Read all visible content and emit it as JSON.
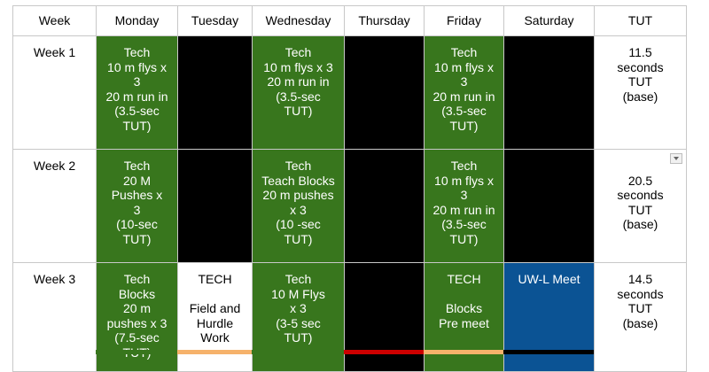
{
  "header": [
    "Week",
    "Monday",
    "Tuesday",
    "Wednesday",
    "Thursday",
    "Friday",
    "Saturday",
    "TUT"
  ],
  "rows": [
    {
      "week": "Week 1",
      "monday": "Tech\n10 m flys x\n3\n20 m run in\n(3.5-sec\nTUT)",
      "wednesday": "Tech\n10 m flys x 3\n20 m run in\n(3.5-sec\nTUT)",
      "friday": "Tech\n10 m flys x\n3\n20 m run in\n(3.5-sec\nTUT)",
      "tut": "11.5\nseconds\nTUT\n(base)"
    },
    {
      "week": "Week 2",
      "monday": "Tech\n20 M\nPushes x\n3\n(10-sec\nTUT)",
      "wednesday": "Tech\nTeach Blocks\n20 m pushes\nx 3\n(10 -sec\nTUT)",
      "friday": "Tech\n10 m flys x\n3\n20 m run in\n(3.5-sec\nTUT)",
      "tut": "20.5\nseconds\nTUT\n(base)"
    },
    {
      "week": "Week 3",
      "monday": "Tech\nBlocks\n20 m\npushes x 3\n(7.5-sec\nTUT)",
      "tuesday": "TECH\n\nField and\nHurdle\nWork",
      "wednesday": "Tech\n10 M Flys\nx 3\n(3-5 sec\nTUT)",
      "friday": "TECH\n\nBlocks\nPre meet",
      "saturday": "UW-L Meet",
      "tut": "14.5\nseconds\nTUT\n(base)"
    }
  ],
  "colors": {
    "green": "#38761d",
    "black": "#000000",
    "blue": "#0b5394",
    "orange_stripe": "#f6b26b",
    "red_stripe": "#cc0000"
  },
  "icons": {
    "dropdown": "dropdown-arrow-icon"
  }
}
